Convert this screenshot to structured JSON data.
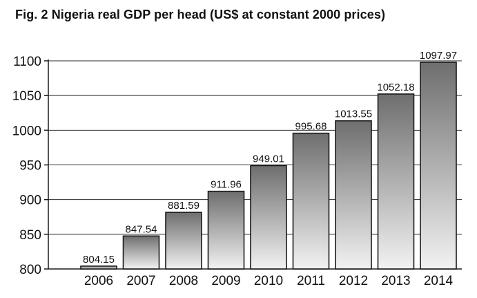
{
  "chart_data": {
    "type": "bar",
    "title": "Fig. 2  Nigeria real GDP per head (US$ at constant 2000 prices)",
    "xlabel": "",
    "ylabel": "",
    "categories": [
      "2006",
      "2007",
      "2008",
      "2009",
      "2010",
      "2011",
      "2012",
      "2013",
      "2014"
    ],
    "values": [
      804.15,
      847.54,
      881.59,
      911.96,
      949.01,
      995.68,
      1013.55,
      1052.18,
      1097.97
    ],
    "value_labels": [
      "804.15",
      "847.54",
      "881.59",
      "911.96",
      "949.01",
      "995.68",
      "1013.55",
      "1052.18",
      "1097.97"
    ],
    "ylim": [
      800,
      1100
    ],
    "yticks": [
      800,
      850,
      900,
      950,
      1000,
      1050,
      1100
    ],
    "grid": true,
    "legend": "none",
    "colors": {
      "bar_top": "#6e6e6e",
      "bar_bottom": "#f2f2f2",
      "outline": "#1a1a1a",
      "grid": "#2a2a2a"
    }
  }
}
